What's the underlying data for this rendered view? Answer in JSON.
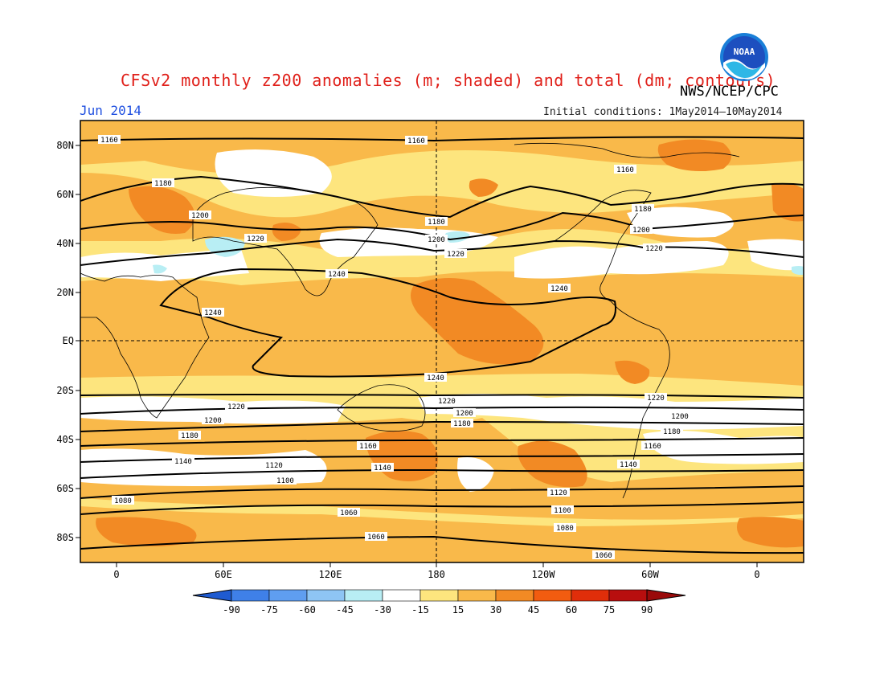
{
  "header": {
    "title": "CFSv2 monthly z200 anomalies (m; shaded) and total (dm; contours)",
    "agency": "NWS/NCEP/CPC",
    "month": "Jun 2014",
    "initial_conditions": "Initial conditions: 1May2014—10May2014",
    "logo_text": "NOAA"
  },
  "map": {
    "lat_labels": [
      "80N",
      "60N",
      "40N",
      "20N",
      "EQ",
      "20S",
      "40S",
      "60S",
      "80S"
    ],
    "lon_labels": [
      "0",
      "60E",
      "120E",
      "180",
      "120W",
      "60W",
      "0"
    ],
    "contour_labels": [
      "1160",
      "1160",
      "1180",
      "1200",
      "1220",
      "1240",
      "1240",
      "1180",
      "1200",
      "1220",
      "1240",
      "1160",
      "1180",
      "1200",
      "1220",
      "1240",
      "1220",
      "1200",
      "1180",
      "1140",
      "1120",
      "1100",
      "1080",
      "1060",
      "1060",
      "1160",
      "1140",
      "1220",
      "1200",
      "1180",
      "1120",
      "1100",
      "1080",
      "1060",
      "1220",
      "1200",
      "1180",
      "1160",
      "1140"
    ]
  },
  "colorbar": {
    "labels": [
      "-90",
      "-75",
      "-60",
      "-45",
      "-30",
      "-15",
      "15",
      "30",
      "45",
      "60",
      "75",
      "90"
    ],
    "colors": [
      "#1f5bd1",
      "#3f80e8",
      "#5f9ef0",
      "#8ec5f4",
      "#b8eef4",
      "#ffffff",
      "#fde57e",
      "#f9b94a",
      "#f28a24",
      "#f25c10",
      "#e02e0a",
      "#b80e0e",
      "#9a0a0a"
    ]
  }
}
